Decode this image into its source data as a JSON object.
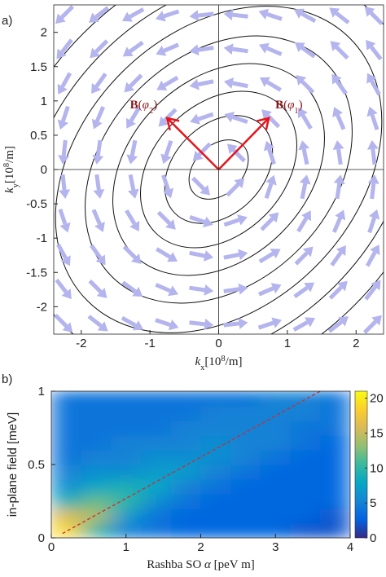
{
  "chart_data": [
    {
      "type": "contour",
      "panel_label": "a)",
      "xlabel": [
        {
          "text": "k",
          "style": "italic"
        },
        {
          "text": "x",
          "style": "sub"
        },
        {
          "text": "[10"
        },
        {
          "text": "8",
          "style": "sup"
        },
        {
          "text": "/m]"
        }
      ],
      "ylabel": [
        {
          "text": "k",
          "style": "italic"
        },
        {
          "text": "y",
          "style": "sub"
        },
        {
          "text": "[10"
        },
        {
          "text": "8",
          "style": "sup"
        },
        {
          "text": "/m]"
        }
      ],
      "xlim": [
        -2.4,
        2.4
      ],
      "ylim": [
        -2.4,
        2.4
      ],
      "xticks": [
        -2,
        -1,
        0,
        1,
        2
      ],
      "yticks": [
        -2,
        -1.5,
        -1,
        -0.5,
        0,
        0.5,
        1,
        1.5,
        2
      ],
      "zero_lines": true,
      "contour_angle": 45,
      "contour_color": "#111111",
      "contours": {
        "major": [
          0.5,
          0.9,
          1.3,
          1.75,
          2.2,
          2.7,
          3.2,
          3.7
        ],
        "minor": [
          0.35,
          0.65,
          0.95,
          1.3,
          1.65,
          2.0,
          2.4,
          2.8
        ]
      },
      "quiver": {
        "x": [
          -2.25,
          -1.75,
          -1.25,
          -0.75,
          -0.25,
          0.25,
          0.75,
          1.25,
          1.75,
          2.25
        ],
        "y": [
          -2.25,
          -1.75,
          -1.25,
          -0.75,
          -0.25,
          0.25,
          0.75,
          1.25,
          1.75,
          2.25
        ],
        "color": "#b4b4ee"
      },
      "vectors": [
        {
          "label": [
            {
              "text": "B",
              "style": "bold"
            },
            {
              "text": "("
            },
            {
              "text": "φ",
              "style": "italic"
            },
            {
              "text": "2",
              "style": "sub"
            },
            {
              "text": ")"
            }
          ],
          "x": -0.75,
          "y": 0.75
        },
        {
          "label": [
            {
              "text": "B",
              "style": "bold"
            },
            {
              "text": "("
            },
            {
              "text": "φ",
              "style": "italic"
            },
            {
              "text": "1",
              "style": "sub"
            },
            {
              "text": ")"
            }
          ],
          "x": 0.73,
          "y": 0.75
        }
      ],
      "vector_color": "#e8141a",
      "label_color": "#8b1414"
    },
    {
      "type": "heatmap",
      "panel_label": "b)",
      "xlabel": [
        {
          "text": "Rashba SO "
        },
        {
          "text": "α",
          "style": "italic"
        },
        {
          "text": " [peV m]"
        }
      ],
      "ylabel": [
        {
          "text": "in-plane field [meV]"
        }
      ],
      "xlim": [
        0,
        4
      ],
      "ylim": [
        0,
        1
      ],
      "xticks": [
        0,
        1,
        2,
        3,
        4
      ],
      "yticks": [
        0,
        0.5,
        1
      ],
      "xbins": [
        0,
        0.4,
        0.8,
        1.2,
        1.6,
        2,
        2.4,
        2.8,
        3.2,
        3.6,
        4
      ],
      "ybins": [
        0,
        0.1,
        0.2,
        0.3,
        0.4,
        0.5,
        0.6,
        0.7,
        0.8,
        0.9,
        1
      ],
      "z": [
        [
          19,
          10,
          5,
          4,
          3,
          3,
          3,
          3,
          2,
          2
        ],
        [
          16,
          14,
          7,
          4,
          3,
          3,
          3,
          3,
          3,
          2
        ],
        [
          9,
          12,
          10,
          6,
          4,
          3,
          3,
          3,
          3,
          3
        ],
        [
          6,
          8,
          9,
          8,
          5,
          4,
          3,
          3,
          3,
          3
        ],
        [
          5,
          6,
          6,
          7,
          7,
          5,
          4,
          3,
          3,
          3
        ],
        [
          4,
          5,
          5,
          6,
          6,
          6,
          5,
          4,
          3,
          3
        ],
        [
          4,
          4,
          5,
          5,
          5,
          6,
          5,
          5,
          4,
          3
        ],
        [
          4,
          4,
          4,
          4,
          5,
          5,
          5,
          5,
          4,
          4
        ],
        [
          4,
          4,
          4,
          4,
          4,
          5,
          5,
          5,
          5,
          4
        ],
        [
          4,
          4,
          4,
          4,
          4,
          4,
          4,
          5,
          5,
          4
        ]
      ],
      "colormap": "parula",
      "clim": [
        0,
        21
      ],
      "cticks": [
        0,
        5,
        10,
        15,
        20
      ],
      "lines": [
        {
          "x": [
            0.15,
            3.6
          ],
          "y": [
            0.03,
            1
          ],
          "color": "#d62728",
          "dash": true
        }
      ]
    }
  ]
}
